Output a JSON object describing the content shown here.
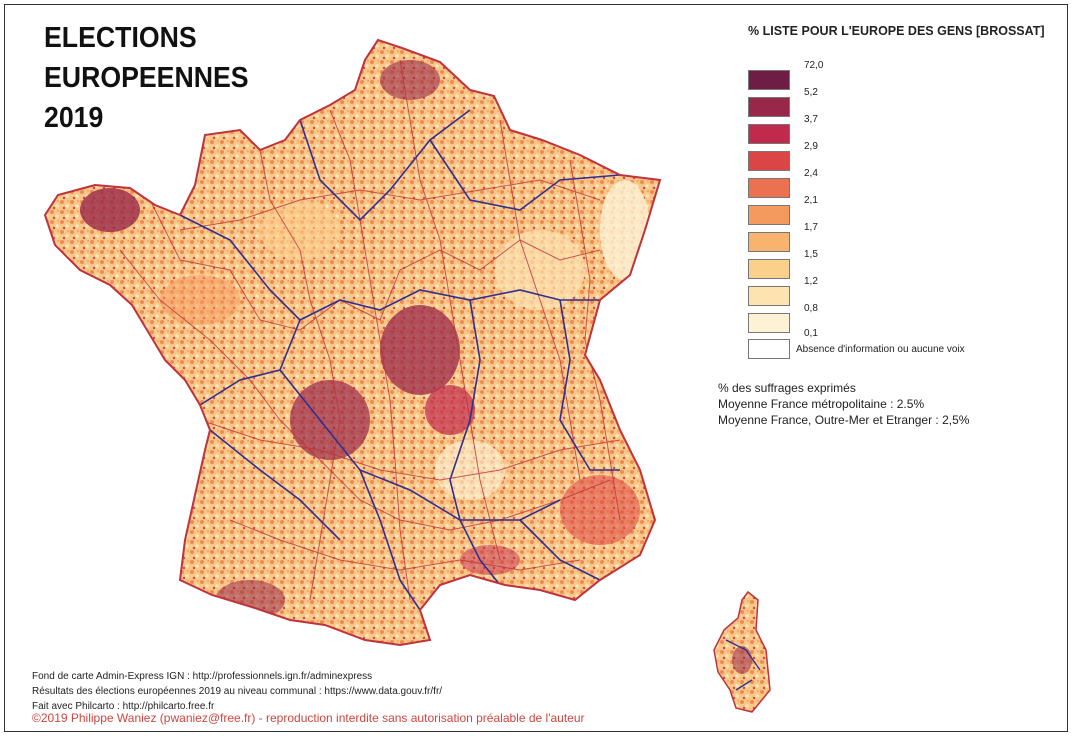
{
  "title_lines": [
    "ELECTIONS",
    "EUROPEENNES",
    "2019"
  ],
  "legend": {
    "title": "% LISTE POUR L'EUROPE DES GENS [BROSSAT]",
    "breaks": [
      "72,0",
      "5,2",
      "3,7",
      "2,9",
      "2,4",
      "2,1",
      "1,7",
      "1,5",
      "1,2",
      "0,8",
      "0,1"
    ],
    "colors": [
      "#6e1d45",
      "#98284a",
      "#c1294d",
      "#dc4545",
      "#ec7150",
      "#f59a5e",
      "#f8b46e",
      "#fbcf8c",
      "#fce3b0",
      "#fdf2d6"
    ],
    "no_data_color": "#ffffff",
    "no_data_label": "Absence d'information ou aucune voix"
  },
  "notes": [
    "% des suffrages exprimés",
    "Moyenne France métropolitaine : 2.5%",
    "Moyenne France, Outre-Mer et Etranger : 2,5%"
  ],
  "sources": [
    "Fond de carte Admin-Express IGN : http://professionnels.ign.fr/adminexpress",
    "Résultats des élections européennes 2019 au niveau communal : https://www.data.gouv.fr/fr/",
    "Fait avec Philcarto : http://philcarto.free.fr"
  ],
  "copyright": "©2019 Philippe Waniez (pwaniez@free.fr) - reproduction interdite sans autorisation préalable de l'auteur",
  "map_colors": {
    "department_border": "#c0323c",
    "region_border": "#2e3192"
  }
}
